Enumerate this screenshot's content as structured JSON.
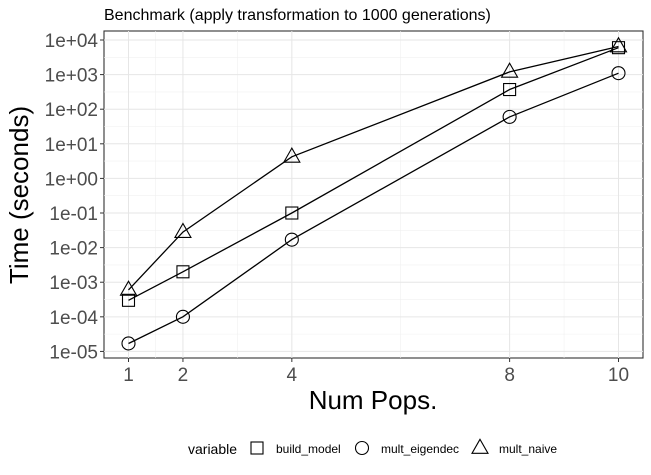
{
  "chart_data": {
    "type": "line",
    "title": "Benchmark (apply transformation to 1000 generations)",
    "xlabel": "Num Pops.",
    "ylabel": "Time (seconds)",
    "x_ticks": [
      1,
      2,
      4,
      8,
      10
    ],
    "y_ticks": [
      1e-05,
      0.0001,
      0.001,
      0.01,
      0.1,
      1,
      10,
      100,
      1000,
      10000
    ],
    "y_tick_labels": [
      "1e-05",
      "1e-04",
      "1e-03",
      "1e-02",
      "1e-01",
      "1e+00",
      "1e+01",
      "1e+02",
      "1e+03",
      "1e+04"
    ],
    "y_scale": "log10",
    "grid": true,
    "legend_title": "variable",
    "legend_position": "bottom",
    "x": [
      1,
      2,
      4,
      8,
      10
    ],
    "series": [
      {
        "name": "build_model",
        "marker": "square",
        "values": [
          0.0003,
          0.002,
          0.1,
          370,
          6000
        ]
      },
      {
        "name": "mult_eigendec",
        "marker": "circle",
        "values": [
          1.7e-05,
          0.0001,
          0.017,
          60,
          1100
        ]
      },
      {
        "name": "mult_naive",
        "marker": "triangle",
        "values": [
          0.0006,
          0.028,
          4.2,
          1200,
          6500
        ]
      }
    ]
  }
}
